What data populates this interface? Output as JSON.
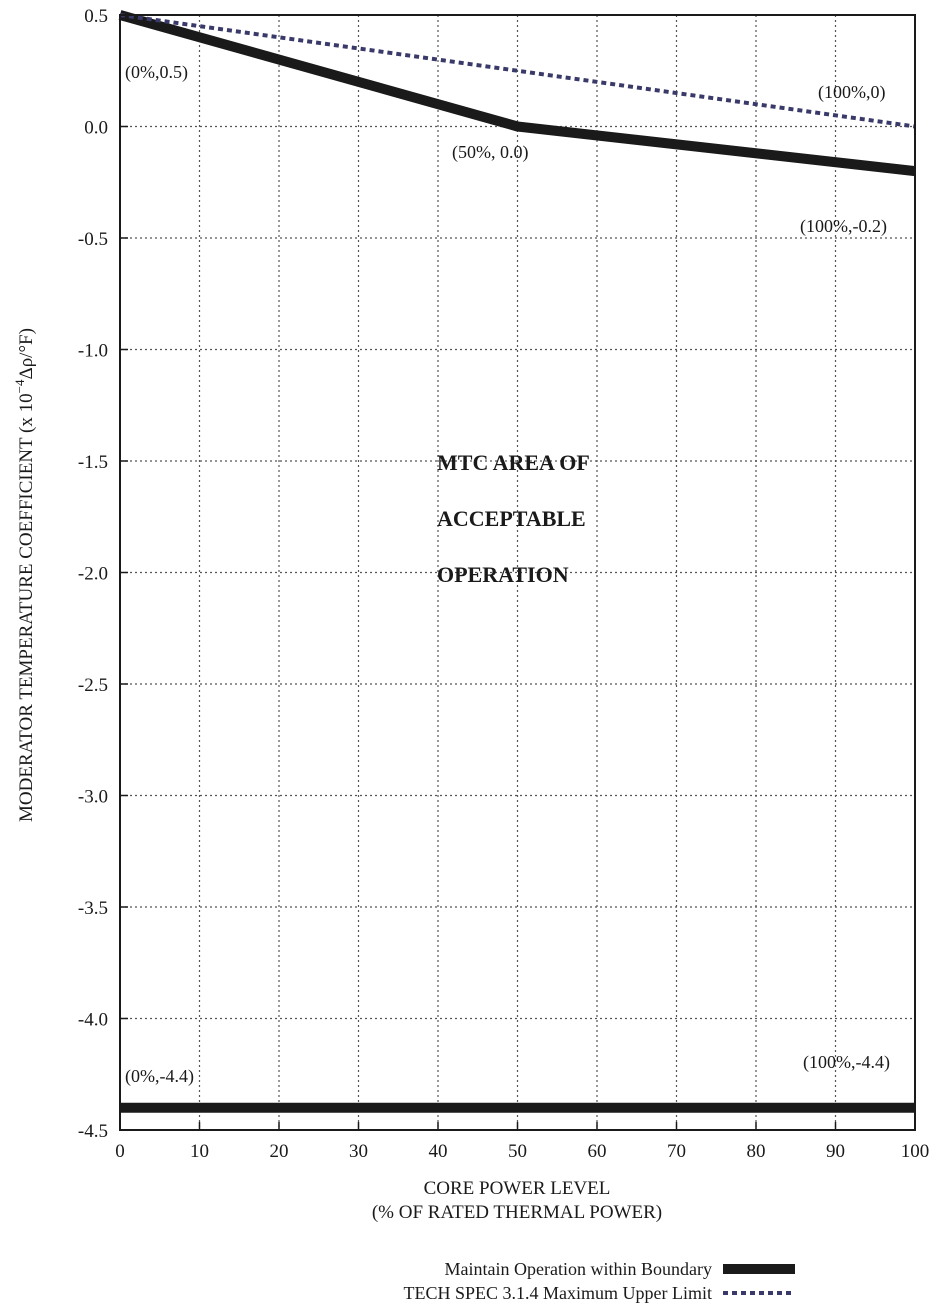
{
  "chart_data": {
    "type": "line",
    "xlabel_line1": "CORE POWER LEVEL",
    "xlabel_line2": "(% OF RATED THERMAL POWER)",
    "ylabel": "MODERATOR TEMPERATURE COEFFICIENT (x 10",
    "ylabel_exp": "−4",
    "ylabel_unit": "Δρ/°F)",
    "xlim": [
      0,
      100
    ],
    "ylim": [
      -4.5,
      0.5
    ],
    "grid": true,
    "x_ticks": [
      "0",
      "10",
      "20",
      "30",
      "40",
      "50",
      "60",
      "70",
      "80",
      "90",
      "100"
    ],
    "y_ticks": [
      "0.5",
      "0.0",
      "-0.5",
      "-1.0",
      "-1.5",
      "-2.0",
      "-2.5",
      "-3.0",
      "-3.5",
      "-4.0",
      "-4.5"
    ],
    "series": [
      {
        "name": "Maintain Operation within Boundary",
        "style": "solid-thick",
        "color": "#1a1a1a",
        "segments": [
          {
            "x": [
              0,
              50,
              100
            ],
            "y": [
              0.5,
              0.0,
              -0.2
            ]
          },
          {
            "x": [
              0,
              100
            ],
            "y": [
              -4.4,
              -4.4
            ]
          }
        ]
      },
      {
        "name": "TECH SPEC 3.1.4 Maximum Upper Limit",
        "style": "dotted",
        "color": "#3a3a6a",
        "segments": [
          {
            "x": [
              0,
              100
            ],
            "y": [
              0.5,
              0.0
            ]
          }
        ]
      }
    ],
    "annotations": {
      "p0": "(0%,0.5)",
      "p1": "(100%,0)",
      "p2": "(50%, 0.0)",
      "p3": "(100%,-0.2)",
      "p4": "(0%,-4.4)",
      "p5": "(100%,-4.4)"
    },
    "region_label": [
      "MTC AREA OF",
      "ACCEPTABLE",
      "OPERATION"
    ]
  }
}
